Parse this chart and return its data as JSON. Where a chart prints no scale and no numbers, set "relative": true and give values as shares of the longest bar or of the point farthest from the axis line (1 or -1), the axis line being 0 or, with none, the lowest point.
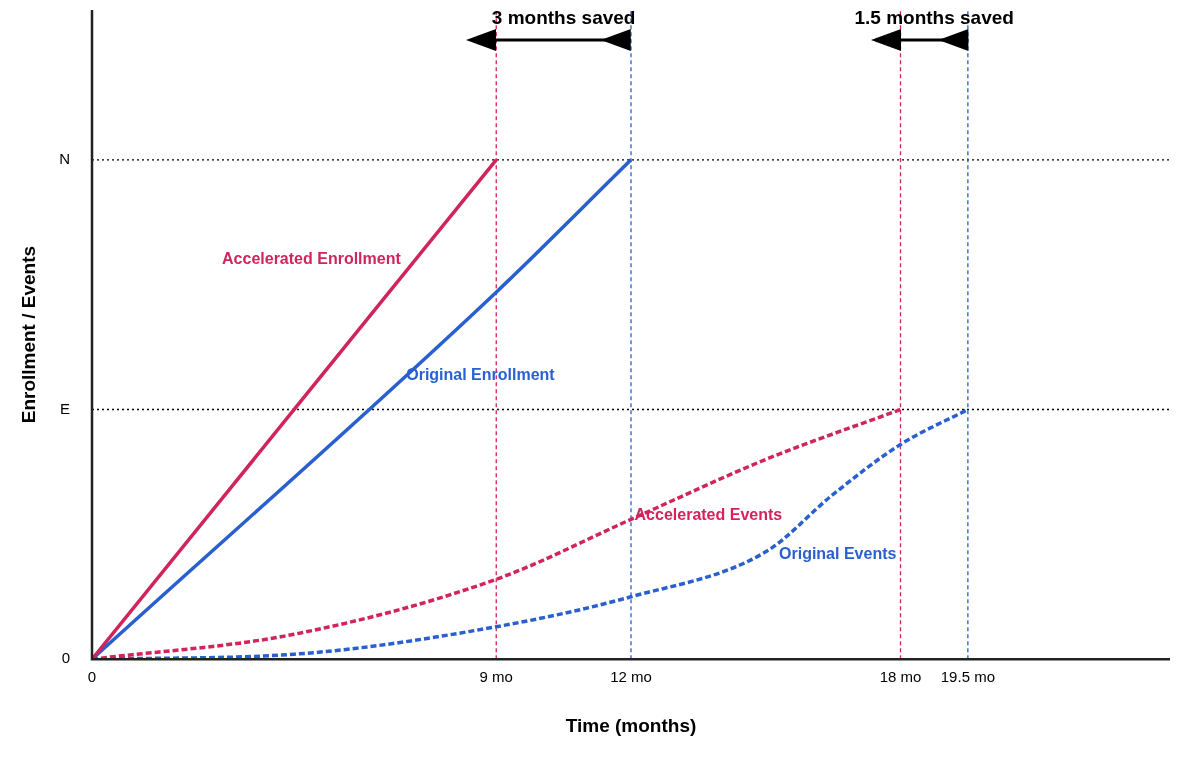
{
  "chart_data": {
    "type": "line",
    "xlabel": "Time (months)",
    "ylabel": "Enrollment / Events",
    "relative": true,
    "xlim": [
      0,
      24
    ],
    "xticks": [
      0,
      {
        "value": 9,
        "label": "9 mo"
      },
      {
        "value": 12,
        "label": "12 mo"
      },
      {
        "value": 18,
        "label": "18 mo"
      },
      {
        "value": 19.5,
        "label": "19.5 mo"
      }
    ],
    "grid": false,
    "legend": false,
    "marker": "none",
    "series": [
      {
        "name": "Accelerated Enrollment",
        "color": "#d0245a",
        "line_style": "solid",
        "x": [
          0,
          9
        ],
        "values": [
          0,
          1
        ]
      },
      {
        "name": "Original Enrollment",
        "color": "#2a5fd0",
        "line_style": "solid",
        "x": [
          0,
          9,
          12
        ],
        "values": [
          0,
          0.735,
          1
        ]
      },
      {
        "name": "Accelerated Events",
        "color": "#d0245a",
        "line_style": "dotted",
        "x": [
          0,
          4.5,
          9,
          12,
          15,
          18
        ],
        "values": [
          0,
          0.05,
          0.16,
          0.28,
          0.4,
          0.5
        ]
      },
      {
        "name": "Original Events",
        "color": "#2a5fd0",
        "line_style": "dotted",
        "x": [
          0,
          4.5,
          9,
          12,
          15,
          16.5,
          18,
          19.5
        ],
        "values": [
          0,
          0.01,
          0.065,
          0.125,
          0.215,
          0.33,
          0.43,
          0.5
        ]
      }
    ],
    "ref_lines": [
      {
        "axis": "y",
        "value": 1,
        "label": "N",
        "color": "#000000",
        "line_style": "dotted"
      },
      {
        "axis": "y",
        "value": 0.5,
        "label": "E",
        "color": "#000000",
        "line_style": "dotted"
      },
      {
        "axis": "x",
        "value": 9,
        "color": "#d0245a",
        "line_style": "dashed"
      },
      {
        "axis": "x",
        "value": 12,
        "color": "#2a5fd0",
        "line_style": "dashed"
      },
      {
        "axis": "x",
        "value": 18,
        "color": "#d0245a",
        "line_style": "dashed"
      },
      {
        "axis": "x",
        "value": 19.5,
        "color": "#2a5fd0",
        "line_style": "dashed"
      }
    ],
    "annotations": [
      "3 months saved",
      "1.5 months saved",
      {
        "text": "0",
        "x": 0,
        "y": 0
      }
    ]
  }
}
